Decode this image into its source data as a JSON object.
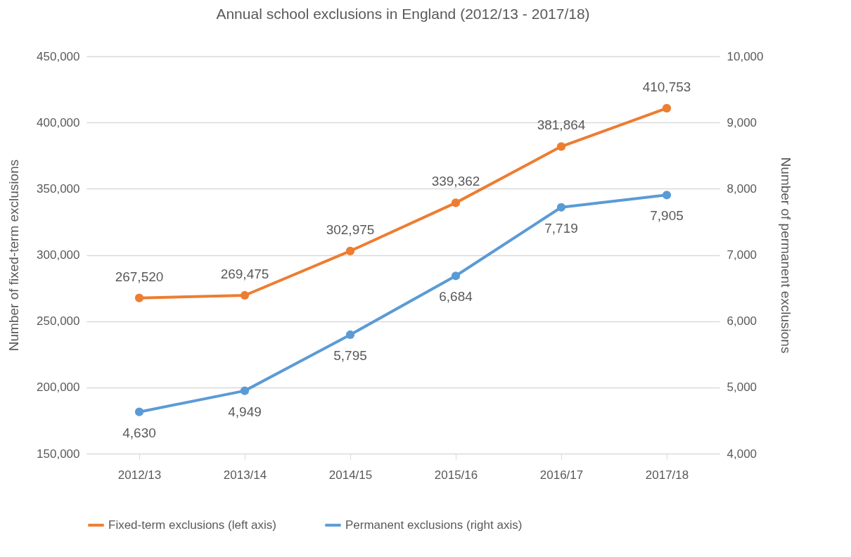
{
  "chart_data": {
    "type": "line",
    "title": "Annual school exclusions in England (2012/13 - 2017/18)",
    "ylabel": "Number of fixed-term exclusions",
    "y2label": "Number of permanent exclusions",
    "categories": [
      "2012/13",
      "2013/14",
      "2014/15",
      "2015/16",
      "2016/17",
      "2017/18"
    ],
    "series": [
      {
        "name": "Fixed-term exclusions (left axis)",
        "color": "#ed7d31",
        "values": [
          267520,
          269475,
          302975,
          339362,
          381864,
          410753
        ],
        "value_labels": [
          "267,520",
          "269,475",
          "302,975",
          "339,362",
          "381,864",
          "410,753"
        ]
      },
      {
        "name": "Permanent exclusions (right axis)",
        "color": "#5b9bd5",
        "axis": "y2",
        "values": [
          4630,
          4949,
          5795,
          6684,
          7719,
          7905
        ],
        "value_labels": [
          "4,630",
          "4,949",
          "5,795",
          "6,684",
          "7,719",
          "7,905"
        ]
      }
    ],
    "ylim": [
      150000,
      450000
    ],
    "yticks": [
      {
        "value": 150000,
        "label": "150,000"
      },
      {
        "value": 200000,
        "label": "200,000"
      },
      {
        "value": 250000,
        "label": "250,000"
      },
      {
        "value": 300000,
        "label": "300,000"
      },
      {
        "value": 350000,
        "label": "350,000"
      },
      {
        "value": 400000,
        "label": "400,000"
      },
      {
        "value": 450000,
        "label": "450,000"
      }
    ],
    "y2lim": [
      4000,
      10000
    ],
    "y2ticks": [
      {
        "value": 4000,
        "label": "4,000"
      },
      {
        "value": 5000,
        "label": "5,000"
      },
      {
        "value": 6000,
        "label": "6,000"
      },
      {
        "value": 7000,
        "label": "7,000"
      },
      {
        "value": 8000,
        "label": "8,000"
      },
      {
        "value": 9000,
        "label": "9,000"
      },
      {
        "value": 10000,
        "label": "10,000"
      }
    ],
    "grid": "y",
    "legend": "bottom",
    "marker": "circle",
    "line_style": "solid"
  }
}
